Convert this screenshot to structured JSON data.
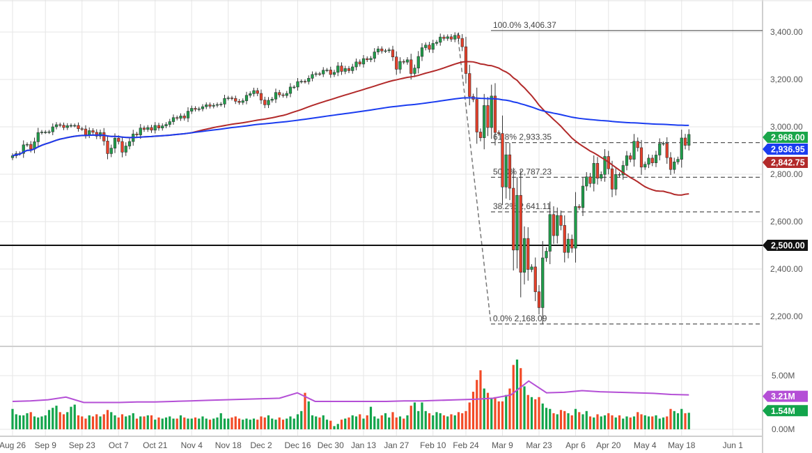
{
  "chart_data": {
    "type": "candlestick",
    "instrument_panes": [
      "price",
      "volume"
    ],
    "y_ticks": [
      "2,200.00",
      "2,400.00",
      "2,600.00",
      "2,800.00",
      "3,000.00",
      "3,200.00",
      "3,400.00"
    ],
    "y_tick_values": [
      2200,
      2400,
      2600,
      2800,
      3000,
      3200,
      3400
    ],
    "ylim": [
      2080,
      3500
    ],
    "x_ticks": [
      "Aug 26",
      "Sep 9",
      "Sep 23",
      "Oct 7",
      "Oct 21",
      "Nov 4",
      "Nov 18",
      "Dec 2",
      "Dec 16",
      "Dec 30",
      "Jan 13",
      "Jan 27",
      "Feb 10",
      "Feb 24",
      "Mar 9",
      "Mar 23",
      "Apr 6",
      "Apr 20",
      "May 4",
      "May 18",
      "Jun 1"
    ],
    "closes": [
      2878,
      2887,
      2888,
      2924,
      2926,
      2906,
      2937,
      2976,
      2978,
      2978,
      2979,
      3000,
      3009,
      3007,
      2997,
      3005,
      3006,
      3006,
      2992,
      2991,
      2966,
      2984,
      2977,
      2961,
      2976,
      2940,
      2887,
      2910,
      2952,
      2938,
      2893,
      2919,
      2938,
      2970,
      2966,
      2995,
      2989,
      2997,
      2986,
      3006,
      2995,
      3004,
      3010,
      3022,
      3039,
      3036,
      3046,
      3037,
      3066,
      3078,
      3074,
      3076,
      3085,
      3093,
      3087,
      3091,
      3094,
      3096,
      3120,
      3122,
      3120,
      3108,
      3103,
      3110,
      3133,
      3140,
      3153,
      3141,
      3113,
      3093,
      3112,
      3117,
      3145,
      3135,
      3132,
      3141,
      3168,
      3168,
      3191,
      3192,
      3191,
      3205,
      3221,
      3224,
      3223,
      3239,
      3240,
      3221,
      3230,
      3257,
      3234,
      3246,
      3237,
      3253,
      3274,
      3265,
      3288,
      3283,
      3289,
      3316,
      3329,
      3320,
      3321,
      3325,
      3295,
      3243,
      3276,
      3273,
      3283,
      3225,
      3248,
      3297,
      3334,
      3345,
      3327,
      3352,
      3357,
      3379,
      3373,
      3380,
      3370,
      3386,
      3373,
      3338,
      3225,
      3128,
      3116,
      2978,
      2954,
      3090,
      2997,
      3130,
      2976,
      2972,
      2746,
      2882,
      2741,
      2480,
      2711,
      2386,
      2529,
      2398,
      2409,
      2304,
      2237,
      2447,
      2475,
      2630,
      2541,
      2626,
      2584,
      2470,
      2526,
      2488,
      2664,
      2659,
      2750,
      2789,
      2761,
      2846,
      2783,
      2799,
      2875,
      2823,
      2737,
      2799,
      2797,
      2837,
      2878,
      2863,
      2939,
      2912,
      2830,
      2842,
      2868,
      2848,
      2881,
      2929,
      2930,
      2870,
      2820,
      2852,
      2863,
      2953,
      2922,
      2968
    ],
    "first_open": 2870,
    "volume_millions": [
      1.9,
      1.4,
      1.3,
      1.3,
      1.5,
      1.6,
      1.2,
      1.1,
      1.2,
      1.3,
      1.8,
      2.0,
      2.2,
      1.6,
      1.4,
      1.6,
      2.1,
      2.3,
      1.3,
      1.2,
      1.0,
      1.3,
      1.2,
      1.4,
      1.2,
      1.4,
      1.8,
      1.6,
      1.3,
      1.1,
      1.4,
      1.2,
      1.3,
      1.5,
      1.0,
      1.2,
      1.2,
      1.3,
      1.3,
      0.9,
      1.1,
      1.0,
      1.1,
      1.2,
      1.0,
      1.0,
      1.3,
      1.1,
      1.0,
      1.0,
      1.1,
      1.0,
      1.2,
      1.0,
      0.9,
      1.0,
      1.1,
      1.5,
      1.0,
      1.0,
      1.1,
      1.2,
      1.0,
      0.9,
      1.0,
      0.9,
      1.0,
      0.9,
      1.2,
      1.1,
      1.3,
      1.0,
      0.9,
      1.1,
      0.9,
      1.0,
      1.2,
      1.0,
      1.4,
      1.7,
      3.4,
      2.6,
      1.3,
      1.2,
      1.1,
      1.3,
      0.9,
      0.8,
      0.3,
      0.5,
      0.9,
      1.0,
      1.1,
      1.3,
      1.2,
      1.4,
      1.0,
      1.3,
      2.1,
      1.2,
      1.0,
      1.3,
      1.5,
      1.1,
      1.6,
      1.1,
      1.2,
      1.0,
      1.3,
      2.2,
      2.5,
      1.7,
      2.5,
      1.7,
      1.5,
      1.3,
      1.6,
      1.5,
      1.3,
      1.2,
      1.4,
      1.3,
      1.6,
      1.5,
      1.7,
      2.5,
      3.5,
      4.6,
      5.5,
      3.8,
      3.4,
      2.9,
      3.0,
      2.6,
      2.6,
      3.2,
      3.8,
      6.0,
      6.5,
      5.7,
      4.0,
      3.2,
      3.0,
      2.8,
      3.0,
      2.4,
      2.0,
      1.9,
      1.5,
      1.4,
      1.8,
      1.7,
      1.5,
      1.3,
      1.9,
      1.6,
      1.4,
      1.7,
      1.2,
      1.1,
      1.4,
      1.2,
      1.3,
      1.5,
      1.3,
      1.1,
      1.3,
      1.0,
      1.2,
      1.1,
      1.2,
      1.6,
      1.4,
      1.3,
      1.2,
      1.2,
      1.3,
      1.0,
      1.1,
      1.2,
      1.9,
      1.7,
      1.5,
      1.9,
      1.5,
      1.54
    ],
    "volume_ma_weekly_millions": [
      2.6,
      2.65,
      2.75,
      3.0,
      2.5,
      2.5,
      2.5,
      2.55,
      2.55,
      2.6,
      2.65,
      2.7,
      2.75,
      2.8,
      2.85,
      2.9,
      3.4,
      2.6,
      2.6,
      2.6,
      2.6,
      2.6,
      2.65,
      2.65,
      2.7,
      2.75,
      2.8,
      2.9,
      3.2,
      4.5,
      3.4,
      3.45,
      3.6,
      3.5,
      3.45,
      3.4,
      3.35,
      3.25,
      3.21
    ],
    "volume_ticks": [
      "0.00M",
      "5.00M"
    ],
    "volume_tick_values": [
      0,
      5
    ],
    "moving_averages": [
      {
        "period": 50,
        "color": "#b22a2a",
        "last_label": "2,842.75"
      },
      {
        "period": 200,
        "color": "#1a3cf0",
        "last_label": "2,936.95"
      }
    ],
    "last_price_label": "2,968.00",
    "last_price": 2968,
    "ma_last_values": [
      2842.75,
      2936.95
    ],
    "horizontal_line": {
      "value": 2500,
      "label": "2,500.00"
    },
    "fibonacci": [
      {
        "label": "100.0% 3,406.37",
        "value": 3406.37
      },
      {
        "label": "61.8% 2,933.35",
        "value": 2933.35
      },
      {
        "label": "50.0% 2,787.23",
        "value": 2787.23
      },
      {
        "label": "38.2% 2,641.11",
        "value": 2641.11
      },
      {
        "label": "0.0% 2,168.09",
        "value": 2168.09
      }
    ],
    "volume_labels": {
      "ma": "3.21M",
      "ma_value": 3.21,
      "last": "1.54M",
      "last_value": 1.54
    },
    "colors": {
      "up": "#1e9e4a",
      "down": "#e8402a",
      "volume_up": "#12a44b",
      "volume_down": "#f24a26",
      "volume_ma": "#b44fd6",
      "last_price": "#1aa64a"
    }
  }
}
